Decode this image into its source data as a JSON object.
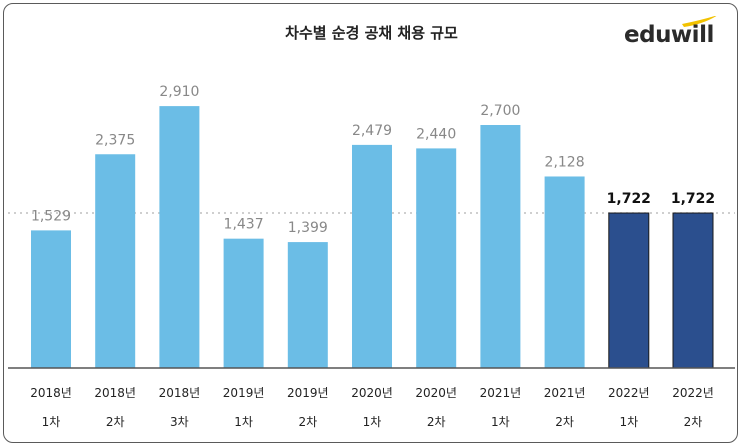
{
  "title": "차수별 순경 공채 채용 규모",
  "logo": {
    "text": "eduwill",
    "icon": "eduwill-swoosh-icon"
  },
  "colors": {
    "bar": "#6bbde6",
    "highlight": "#2b4f8e",
    "reference_line": "#bfbfbf",
    "axis": "#555555"
  },
  "chart_data": {
    "type": "bar",
    "title": "차수별 순경 공채 채용 규모",
    "xlabel": "",
    "ylabel": "",
    "categories": [
      [
        "2018년",
        "1차"
      ],
      [
        "2018년",
        "2차"
      ],
      [
        "2018년",
        "3차"
      ],
      [
        "2019년",
        "1차"
      ],
      [
        "2019년",
        "2차"
      ],
      [
        "2020년",
        "1차"
      ],
      [
        "2020년",
        "2차"
      ],
      [
        "2021년",
        "1차"
      ],
      [
        "2021년",
        "2차"
      ],
      [
        "2022년",
        "1차"
      ],
      [
        "2022년",
        "2차"
      ]
    ],
    "values": [
      1529,
      2375,
      2910,
      1437,
      1399,
      2479,
      2440,
      2700,
      2128,
      1722,
      1722
    ],
    "value_labels": [
      "1,529",
      "2,375",
      "2,910",
      "1,437",
      "1,399",
      "2,479",
      "2,440",
      "2,700",
      "2,128",
      "1,722",
      "1,722"
    ],
    "highlighted": [
      false,
      false,
      false,
      false,
      false,
      false,
      false,
      false,
      false,
      true,
      true
    ],
    "reference_line": 1722,
    "ylim": [
      0,
      3000
    ],
    "grid": false,
    "legend": "none"
  }
}
